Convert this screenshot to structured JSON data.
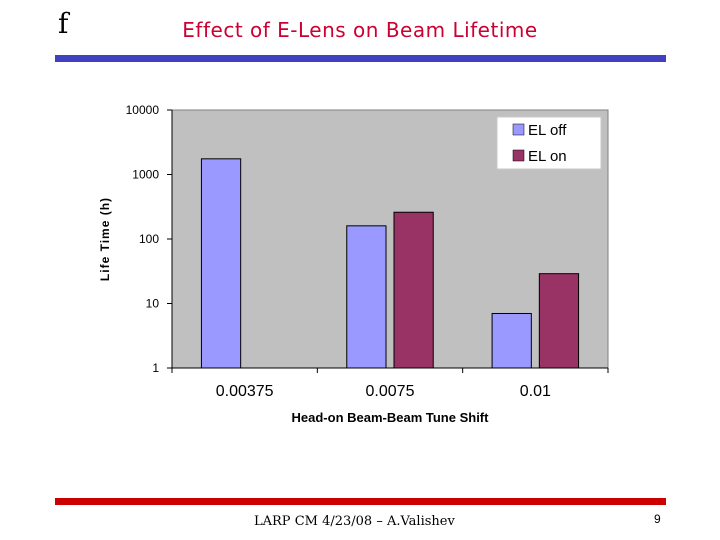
{
  "slide": {
    "logo_glyph": "f",
    "title": "Effect of E-Lens on Beam Lifetime",
    "title_color": "#cc0033",
    "rule_color": "#4040c0",
    "rule_bottom_color": "#cc0000",
    "footer": "LARP CM 4/23/08 – A.Valishev",
    "page_number": "9"
  },
  "chart_data": {
    "type": "bar",
    "categories": [
      "0.00375",
      "0.0075",
      "0.01"
    ],
    "series": [
      {
        "name": "EL off",
        "color": "#9999ff",
        "values": [
          1750,
          160,
          7
        ]
      },
      {
        "name": "EL on",
        "color": "#993366",
        "values": [
          null,
          260,
          29
        ]
      }
    ],
    "xlabel": "Head-on Beam-Beam Tune Shift",
    "ylabel": "Life Time (h)",
    "yscale": "log",
    "ylim": [
      1,
      10000
    ],
    "yticks": [
      "1",
      "10",
      "100",
      "1000",
      "10000"
    ],
    "legend_position": "top-right",
    "plot_background": "#c0c0c0",
    "grid": false
  }
}
